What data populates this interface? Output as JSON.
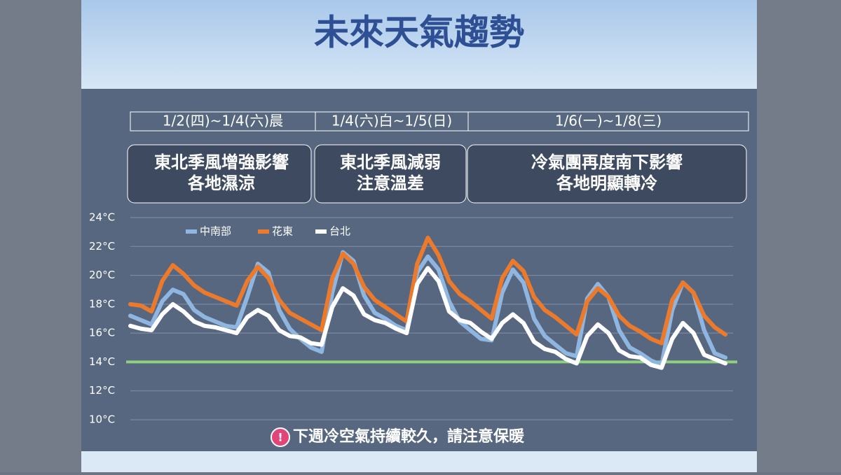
{
  "header": {
    "title": "未來天氣趨勢"
  },
  "periods": [
    {
      "label": "1/2(四)~1/4(六)晨",
      "lines": [
        "東北季風增強影響",
        "各地濕涼"
      ]
    },
    {
      "label": "1/4(六)白~1/5(日)",
      "lines": [
        "東北季風減弱",
        "注意溫差"
      ]
    },
    {
      "label": "1/6(一)~1/8(三)",
      "lines": [
        "冷氣團再度南下影響",
        "各地明顯轉冷"
      ]
    }
  ],
  "chart_data": {
    "type": "line",
    "ylim": [
      10,
      24
    ],
    "yticks": [
      {
        "value": 10,
        "label": "10°C"
      },
      {
        "value": 12,
        "label": "12°C"
      },
      {
        "value": 14,
        "label": "14°C"
      },
      {
        "value": 16,
        "label": "16°C"
      },
      {
        "value": 18,
        "label": "18°C"
      },
      {
        "value": 20,
        "label": "20°C"
      },
      {
        "value": 22,
        "label": "22°C"
      },
      {
        "value": 24,
        "label": "24°C"
      }
    ],
    "grid": true,
    "reference_line": {
      "value": 14,
      "color": "#8fcf7f"
    },
    "series": [
      {
        "name": "中南部",
        "color": "#8fb6e0",
        "values": [
          17.2,
          16.9,
          16.6,
          18.2,
          19.0,
          18.7,
          17.6,
          17.1,
          16.8,
          16.5,
          16.4,
          18.5,
          20.8,
          20.2,
          17.6,
          16.3,
          15.6,
          15.0,
          14.7,
          18.8,
          21.6,
          21.0,
          18.6,
          17.4,
          17.0,
          16.5,
          16.2,
          20.2,
          21.3,
          20.4,
          18.2,
          16.8,
          16.2,
          15.6,
          15.5,
          18.8,
          20.4,
          19.5,
          17.0,
          15.8,
          15.2,
          14.6,
          14.4,
          18.4,
          19.4,
          18.5,
          16.2,
          15.0,
          14.6,
          14.1,
          13.8,
          17.6,
          19.5,
          18.8,
          16.2,
          14.6,
          14.3
        ]
      },
      {
        "name": "花東",
        "color": "#ec7a2c",
        "values": [
          18.0,
          17.9,
          17.5,
          19.6,
          20.7,
          20.1,
          19.3,
          18.8,
          18.5,
          18.2,
          17.9,
          19.6,
          20.6,
          19.8,
          18.3,
          17.4,
          17.0,
          16.6,
          16.2,
          19.8,
          21.5,
          20.8,
          19.2,
          18.3,
          17.8,
          17.3,
          16.8,
          20.8,
          22.6,
          21.4,
          19.6,
          18.7,
          18.2,
          17.6,
          17.0,
          19.8,
          21.0,
          20.3,
          18.5,
          17.6,
          17.1,
          16.5,
          15.9,
          18.2,
          19.1,
          18.5,
          17.2,
          16.5,
          16.1,
          15.6,
          15.3,
          18.3,
          19.5,
          18.8,
          17.2,
          16.4,
          15.9
        ]
      },
      {
        "name": "台北",
        "color": "#ffffff",
        "values": [
          16.5,
          16.3,
          16.2,
          17.3,
          18.0,
          17.5,
          16.8,
          16.5,
          16.4,
          16.2,
          16.0,
          17.1,
          17.6,
          17.2,
          16.2,
          15.8,
          15.7,
          15.3,
          15.2,
          17.8,
          19.1,
          18.6,
          17.3,
          16.9,
          16.7,
          16.3,
          16.0,
          19.4,
          20.5,
          19.6,
          17.5,
          16.9,
          16.7,
          16.1,
          15.6,
          16.7,
          17.3,
          16.7,
          15.4,
          14.9,
          14.7,
          14.2,
          13.9,
          15.8,
          16.6,
          16.0,
          14.8,
          14.4,
          14.3,
          13.8,
          13.6,
          15.6,
          16.7,
          16.0,
          14.5,
          14.2,
          13.9
        ]
      }
    ]
  },
  "note": "下週冷空氣持續較久，請注意保暖"
}
